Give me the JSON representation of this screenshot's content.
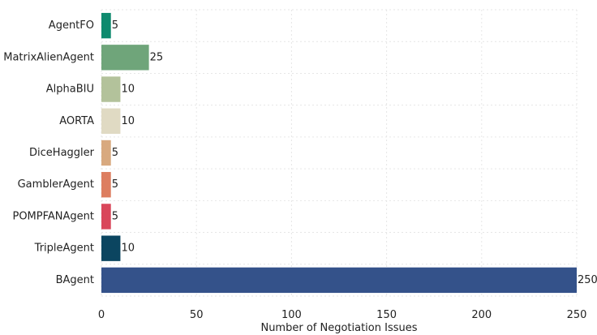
{
  "chart_data": {
    "type": "bar",
    "orientation": "horizontal",
    "categories": [
      "AgentFO",
      "MatrixAlienAgent",
      "AlphaBIU",
      "AORTA",
      "DiceHaggler",
      "GamblerAgent",
      "POMPFANAgent",
      "TripleAgent",
      "BAgent"
    ],
    "values": [
      5,
      25,
      10,
      10,
      5,
      5,
      5,
      10,
      250
    ],
    "colors": [
      "#0e8a6e",
      "#6fa57a",
      "#b3c29b",
      "#e0dac3",
      "#d8a97f",
      "#dd7e60",
      "#d9465a",
      "#0b4560",
      "#34528a"
    ],
    "xlabel": "Number of Negotiation Issues",
    "ylabel": "",
    "xlim": [
      0,
      250
    ],
    "xticks": [
      0,
      50,
      100,
      150,
      200,
      250
    ],
    "grid": true
  }
}
